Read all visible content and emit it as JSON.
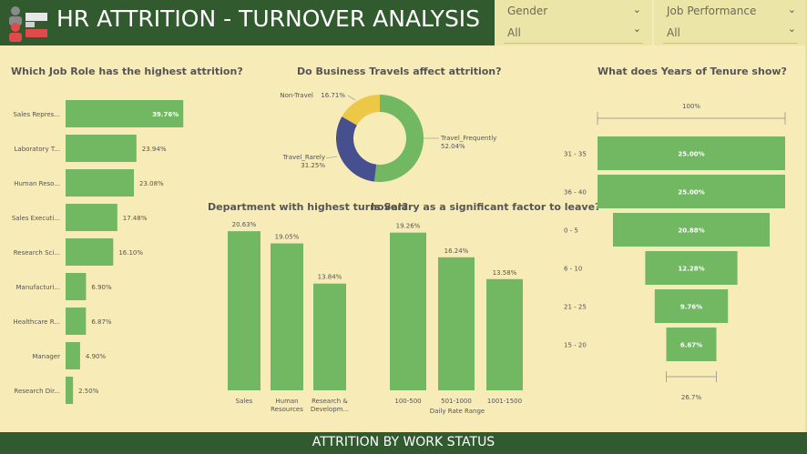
{
  "header": {
    "title": "HR ATTRITION - TURNOVER ANALYSIS"
  },
  "filters": [
    {
      "label": "Gender",
      "value": "All"
    },
    {
      "label": "Job Performance",
      "value": "All"
    }
  ],
  "footer": {
    "title": "ATTRITION BY WORK STATUS"
  },
  "colors": {
    "bar": "#72b862",
    "header": "#325a2f",
    "navy": "#46508e",
    "yellow": "#edc847",
    "background": "#f7ebb8"
  },
  "chart_data": [
    {
      "type": "bar",
      "orientation": "horizontal",
      "title": "Which Job Role has the highest attrition?",
      "categories": [
        "Sales Repres...",
        "Laboratory T...",
        "Human Reso...",
        "Sales Executi...",
        "Research Sci...",
        "Manufacturi...",
        "Healthcare R...",
        "Manager",
        "Research Dir..."
      ],
      "values": [
        39.76,
        23.94,
        23.08,
        17.48,
        16.1,
        6.9,
        6.87,
        4.9,
        2.5
      ],
      "labels": [
        "39.76%",
        "23.94%",
        "23.08%",
        "17.48%",
        "16.10%",
        "6.90%",
        "6.87%",
        "4.90%",
        "2.50%"
      ],
      "xlim": [
        0,
        40
      ]
    },
    {
      "type": "pie",
      "style": "donut",
      "title": "Do Business Travels affect attrition?",
      "categories": [
        "Travel_Frequently",
        "Travel_Rarely",
        "Non-Travel"
      ],
      "values": [
        52.04,
        31.25,
        16.71
      ],
      "labels": [
        "52.04%",
        "31.25%",
        "16.71%"
      ]
    },
    {
      "type": "bar",
      "title": "Department with highest turnover?",
      "categories": [
        "Sales",
        "Human Resources",
        "Research & Developm..."
      ],
      "category_lines": [
        [
          "Sales"
        ],
        [
          "Human",
          "Resources"
        ],
        [
          "Research &",
          "Developm..."
        ]
      ],
      "values": [
        20.63,
        19.05,
        13.84
      ],
      "labels": [
        "20.63%",
        "19.05%",
        "13.84%"
      ],
      "ylim": [
        0,
        21
      ]
    },
    {
      "type": "bar",
      "title": "Is Salary as a significant factor to leave?",
      "categories": [
        "100-500",
        "501-1000",
        "1001-1500"
      ],
      "values": [
        19.26,
        16.24,
        13.58
      ],
      "labels": [
        "19.26%",
        "16.24%",
        "13.58%"
      ],
      "xlabel": "Daily Rate Range",
      "ylim": [
        0,
        20
      ]
    },
    {
      "type": "bar",
      "style": "funnel",
      "title": "What does Years of Tenure show?",
      "categories": [
        "31 - 35",
        "36 - 40",
        "0 - 5",
        "6 - 10",
        "21 - 25",
        "15 - 20"
      ],
      "values": [
        25.0,
        25.0,
        20.88,
        12.28,
        9.76,
        6.67
      ],
      "labels": [
        "25.00%",
        "25.00%",
        "20.88%",
        "12.28%",
        "9.76%",
        "6.67%"
      ],
      "top_label": "100%",
      "bottom_label": "26.7%"
    }
  ]
}
